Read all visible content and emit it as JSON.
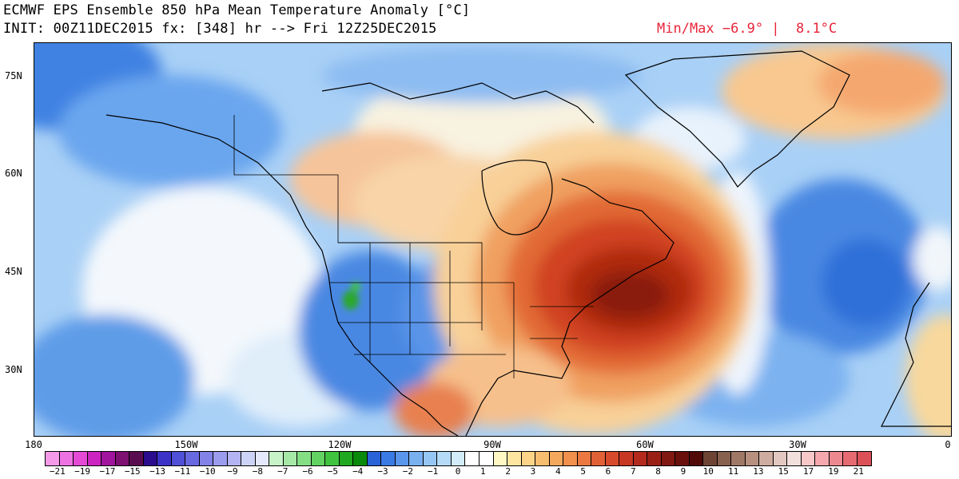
{
  "header": {
    "title_line1": "ECMWF EPS Ensemble 850 hPa Mean Temperature Anomaly [°C]",
    "title_line2": "INIT: 00Z11DEC2015 fx: [348] hr --> Fri 12Z25DEC2015",
    "minmax": "Min/Max −6.9° |  8.1°C"
  },
  "axes": {
    "lat_labels": [
      "75N",
      "60N",
      "45N",
      "30N"
    ],
    "lon_labels": [
      "180",
      "150W",
      "120W",
      "90W",
      "60W",
      "30W",
      "0"
    ]
  },
  "colors": {
    "minmax_text": "#e8253a",
    "ocean_cold": "#9ec8f5",
    "warm_core": "#b02a10",
    "cold_core": "#2f6fd8"
  },
  "colorbar": {
    "colors": [
      "#f59ae8",
      "#ef72e2",
      "#e44ad6",
      "#cc24c0",
      "#a0149e",
      "#7d1070",
      "#5a0c50",
      "#2a0c8c",
      "#3c32c8",
      "#4f4fd8",
      "#6868e0",
      "#8282e8",
      "#9c9cee",
      "#b4b4f2",
      "#cdd3f6",
      "#e4e8fa",
      "#c8f2c8",
      "#a6e8a6",
      "#84de84",
      "#62d262",
      "#40c440",
      "#20a820",
      "#0a8a0a",
      "#2a62d8",
      "#3a7ae4",
      "#5a96ec",
      "#78b0f0",
      "#96c6f4",
      "#b4daf8",
      "#d2ecfa",
      "#ffffff",
      "#ffffff",
      "#fff8c4",
      "#ffe6a0",
      "#fcd488",
      "#f8be70",
      "#f4a85c",
      "#f0904c",
      "#ea7840",
      "#e26036",
      "#d84a2c",
      "#c83624",
      "#b42a1c",
      "#9a2016",
      "#821812",
      "#6a100c",
      "#520a08",
      "#6e4434",
      "#88604e",
      "#a07866",
      "#b89080",
      "#ceaca0",
      "#e2c8c0",
      "#f2e0dc",
      "#f8c8c8",
      "#f4a8ae",
      "#ee8890",
      "#e66a72",
      "#dc5058"
    ],
    "labels": [
      "−21",
      "−19",
      "−17",
      "−15",
      "−13",
      "−11",
      "−10",
      "−9",
      "−8",
      "−7",
      "−6",
      "−5",
      "−4",
      "−3",
      "−2",
      "−1",
      "0",
      "1",
      "2",
      "3",
      "4",
      "5",
      "6",
      "7",
      "8",
      "9",
      "10",
      "11",
      "13",
      "15",
      "17",
      "19",
      "21"
    ]
  }
}
